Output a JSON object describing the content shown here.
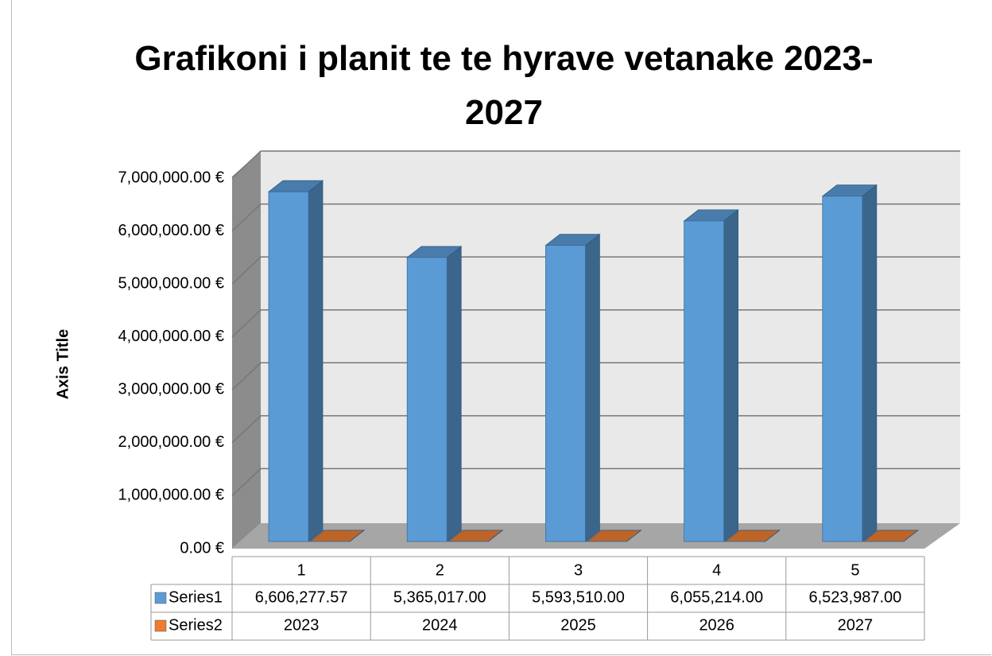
{
  "chart_data": {
    "type": "bar3d",
    "title": "Grafikoni i planit te te hyrave vetanake 2023-2027",
    "y_axis_label": "Axis Title",
    "categories": [
      "1",
      "2",
      "3",
      "4",
      "5"
    ],
    "series": [
      {
        "name": "Series1",
        "color": "#5b9bd5",
        "values": [
          6606277.57,
          5365017,
          5593510,
          6055214,
          6523987
        ],
        "value_labels": [
          "6,606,277.57",
          "5,365,017.00",
          "5,593,510.00",
          "6,055,214.00",
          "6,523,987.00"
        ]
      },
      {
        "name": "Series2",
        "color": "#ed7d31",
        "values": [
          2023,
          2024,
          2025,
          2026,
          2027
        ]
      }
    ],
    "ylim": [
      0,
      7000000
    ],
    "yticks": [
      {
        "value": 0,
        "label": "0.00 €"
      },
      {
        "value": 1000000,
        "label": "1,000,000.00 €"
      },
      {
        "value": 2000000,
        "label": "2,000,000.00 €"
      },
      {
        "value": 3000000,
        "label": "3,000,000.00 €"
      },
      {
        "value": 4000000,
        "label": "4,000,000.00 €"
      },
      {
        "value": 5000000,
        "label": "5,000,000.00 €"
      },
      {
        "value": 6000000,
        "label": "6,000,000.00 €"
      },
      {
        "value": 7000000,
        "label": "7,000,000.00 €"
      }
    ],
    "grid": true,
    "data_table": true
  }
}
